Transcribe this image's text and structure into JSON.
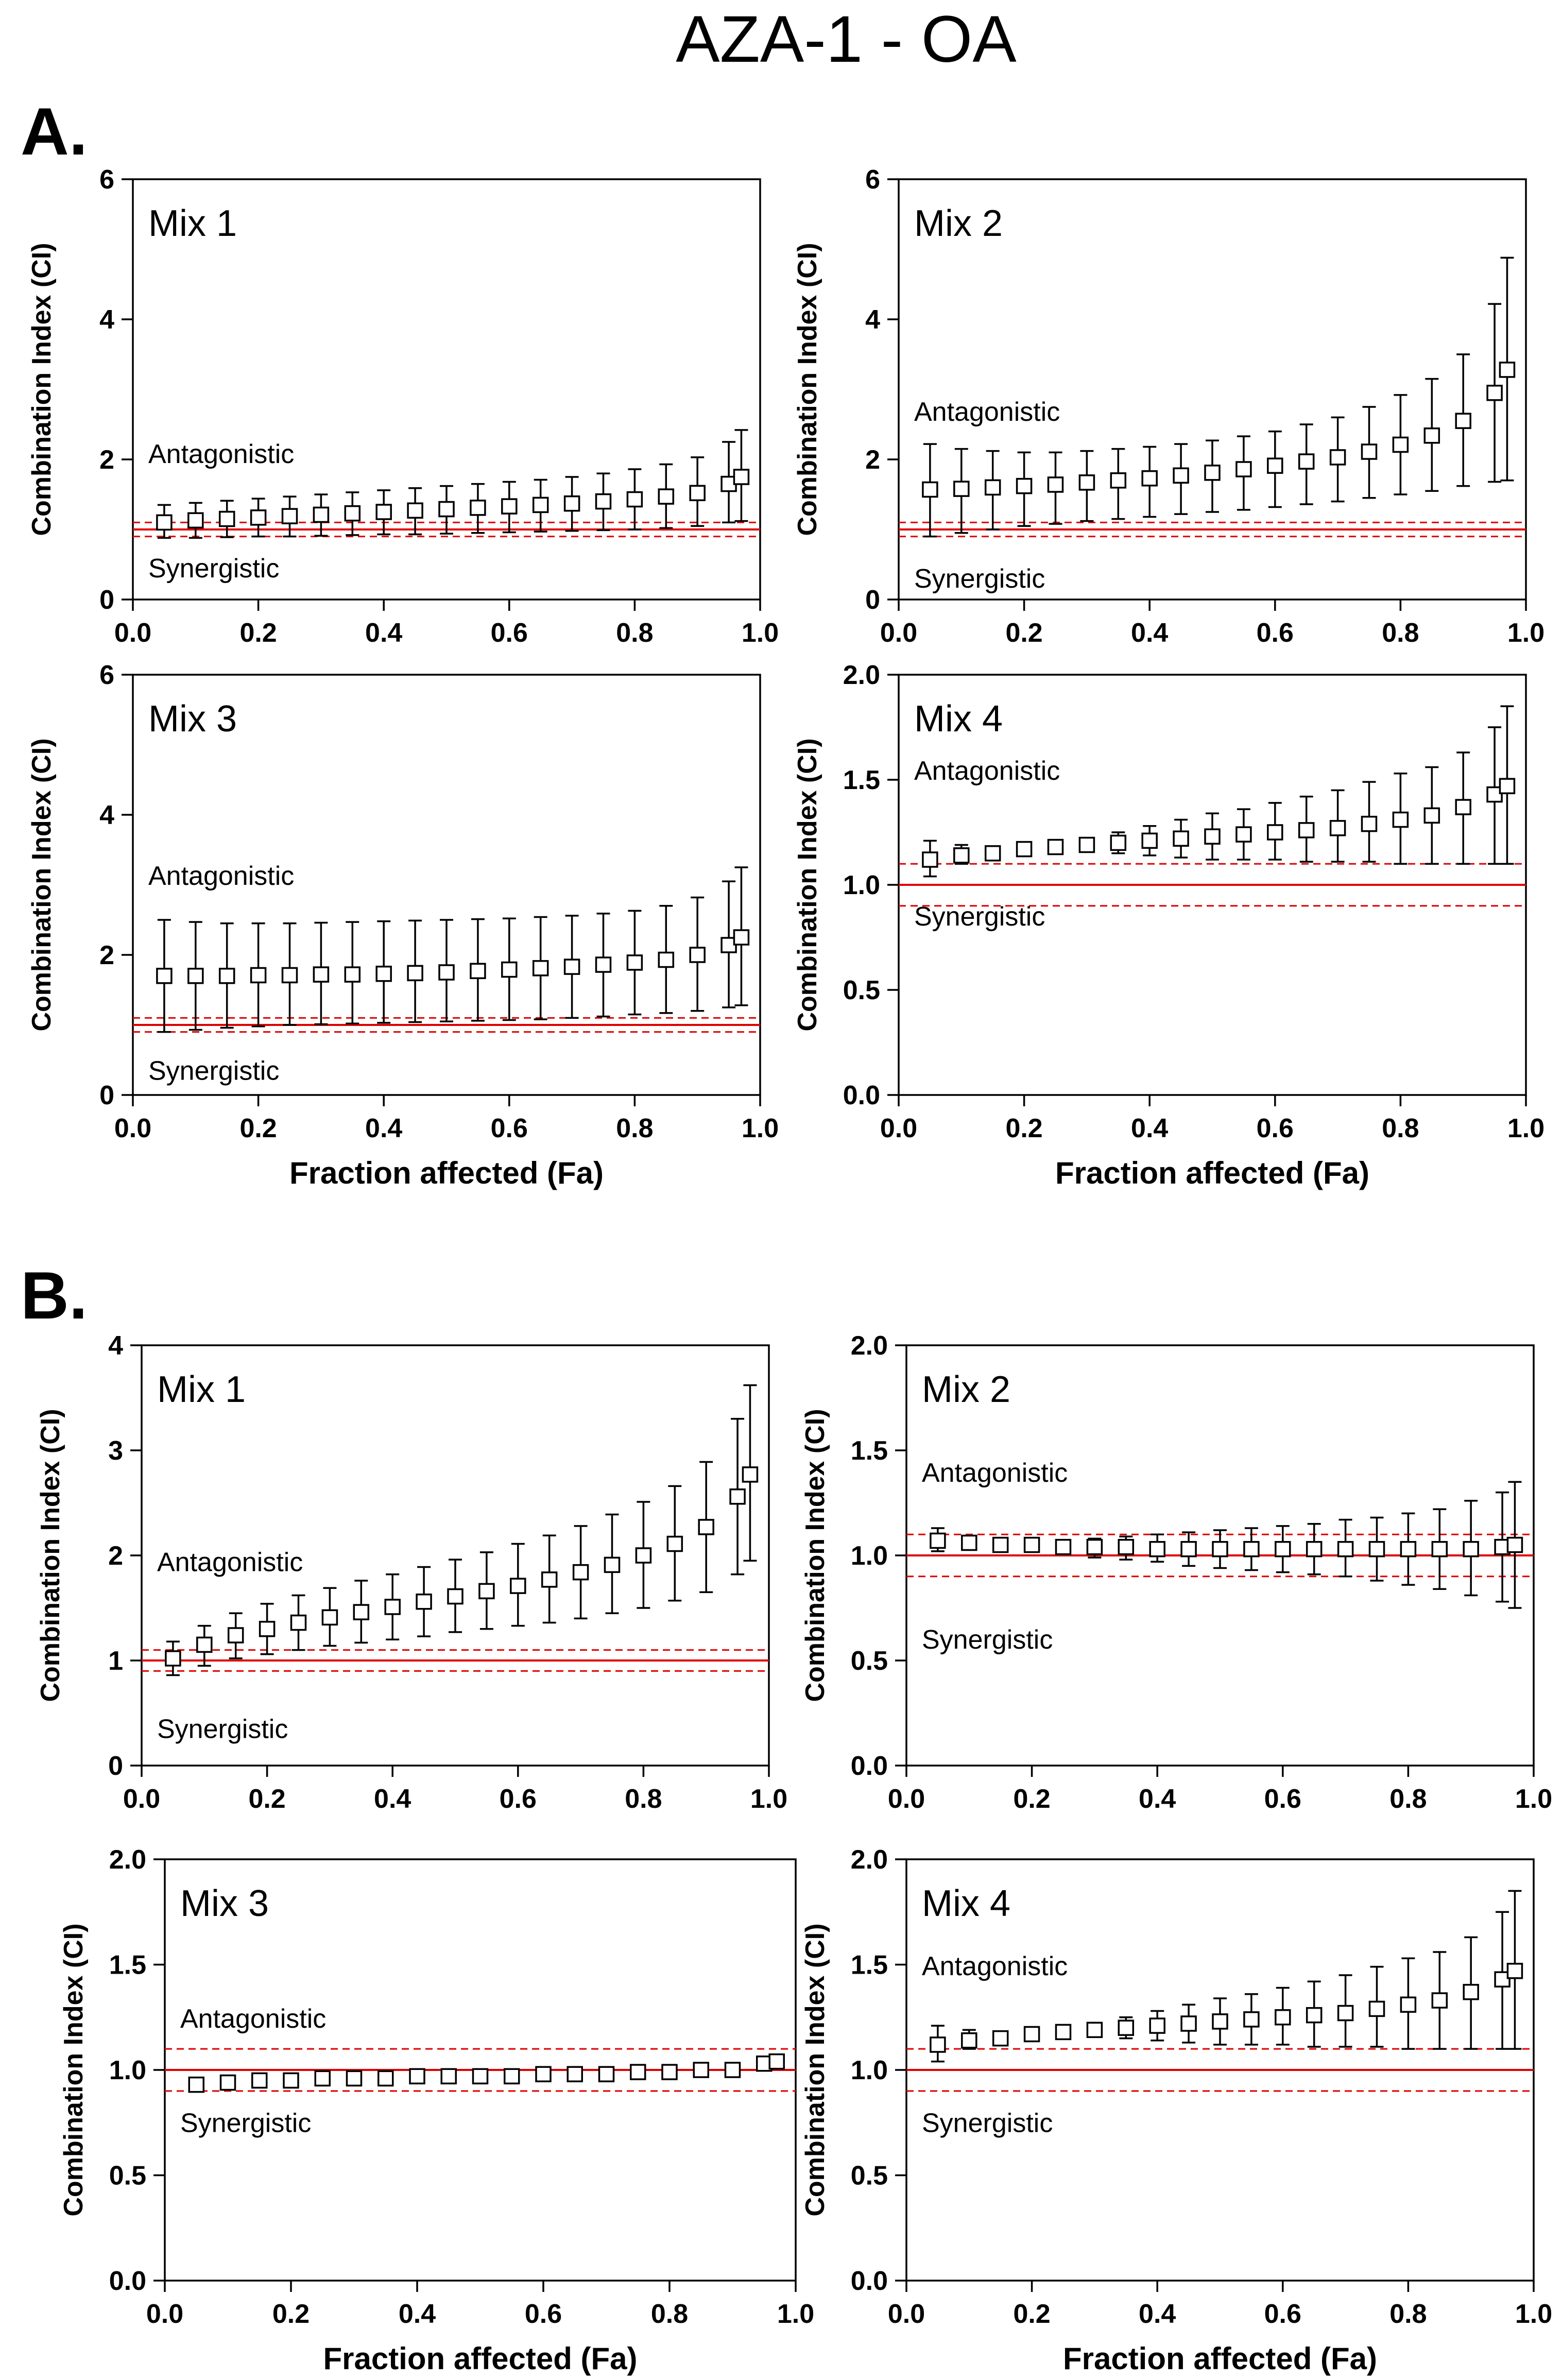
{
  "figure_title": "AZA-1 - OA",
  "colors": {
    "reference_line": "#e00000",
    "marker_edge": "#000000",
    "marker_fill": "#ffffff"
  },
  "x_axis_label": "Fraction affected (Fa)",
  "y_axis_label": "Combination Index (CI)",
  "section_labels": {
    "A": "A.",
    "B": "B."
  },
  "zone_labels": {
    "antagonistic": "Antagonistic",
    "synergistic": "Synergistic"
  },
  "chart_data": [
    {
      "id": "A-mix1",
      "section": "A",
      "type": "scatter",
      "title": "Mix 1",
      "xlim": [
        0,
        1
      ],
      "ylim": [
        0,
        6
      ],
      "xticks": [
        0.0,
        0.2,
        0.4,
        0.6,
        0.8,
        1.0
      ],
      "yticks": [
        0,
        2,
        4,
        6
      ],
      "xtick_labels": [
        "0.0",
        "0.2",
        "0.4",
        "0.6",
        "0.8",
        "1.0"
      ],
      "ytick_labels": [
        "0",
        "2",
        "4",
        "6"
      ],
      "reference_lines": {
        "additive": 1.0,
        "upper": 1.1,
        "lower": 0.9
      },
      "x": [
        0.05,
        0.1,
        0.15,
        0.2,
        0.25,
        0.3,
        0.35,
        0.4,
        0.45,
        0.5,
        0.55,
        0.6,
        0.65,
        0.7,
        0.75,
        0.8,
        0.85,
        0.9,
        0.95,
        0.97
      ],
      "y": [
        1.1,
        1.13,
        1.15,
        1.17,
        1.19,
        1.21,
        1.23,
        1.25,
        1.27,
        1.29,
        1.31,
        1.33,
        1.35,
        1.37,
        1.4,
        1.43,
        1.47,
        1.52,
        1.65,
        1.75
      ],
      "err_low": [
        0.88,
        0.88,
        0.89,
        0.9,
        0.9,
        0.91,
        0.92,
        0.93,
        0.93,
        0.94,
        0.95,
        0.96,
        0.97,
        0.98,
        0.99,
        1.0,
        1.02,
        1.05,
        1.1,
        1.12
      ],
      "err_high": [
        1.35,
        1.38,
        1.41,
        1.44,
        1.47,
        1.5,
        1.53,
        1.56,
        1.59,
        1.62,
        1.65,
        1.68,
        1.71,
        1.75,
        1.8,
        1.86,
        1.93,
        2.03,
        2.25,
        2.42
      ]
    },
    {
      "id": "A-mix2",
      "section": "A",
      "type": "scatter",
      "title": "Mix 2",
      "xlim": [
        0,
        1
      ],
      "ylim": [
        0,
        6
      ],
      "xticks": [
        0.0,
        0.2,
        0.4,
        0.6,
        0.8,
        1.0
      ],
      "yticks": [
        0,
        2,
        4,
        6
      ],
      "xtick_labels": [
        "0.0",
        "0.2",
        "0.4",
        "0.6",
        "0.8",
        "1.0"
      ],
      "ytick_labels": [
        "0",
        "2",
        "4",
        "6"
      ],
      "reference_lines": {
        "additive": 1.0,
        "upper": 1.1,
        "lower": 0.9
      },
      "x": [
        0.05,
        0.1,
        0.15,
        0.2,
        0.25,
        0.3,
        0.35,
        0.4,
        0.45,
        0.5,
        0.55,
        0.6,
        0.65,
        0.7,
        0.75,
        0.8,
        0.85,
        0.9,
        0.95,
        0.97
      ],
      "y": [
        1.57,
        1.58,
        1.6,
        1.62,
        1.64,
        1.67,
        1.7,
        1.73,
        1.77,
        1.81,
        1.86,
        1.91,
        1.97,
        2.03,
        2.11,
        2.21,
        2.34,
        2.55,
        2.95,
        3.28
      ],
      "err_low": [
        0.9,
        0.95,
        1.0,
        1.05,
        1.08,
        1.12,
        1.15,
        1.18,
        1.22,
        1.25,
        1.28,
        1.32,
        1.36,
        1.4,
        1.45,
        1.5,
        1.55,
        1.62,
        1.68,
        1.7
      ],
      "err_high": [
        2.22,
        2.15,
        2.12,
        2.1,
        2.1,
        2.12,
        2.15,
        2.18,
        2.22,
        2.27,
        2.33,
        2.4,
        2.5,
        2.6,
        2.75,
        2.92,
        3.15,
        3.5,
        4.22,
        4.88
      ]
    },
    {
      "id": "A-mix3",
      "section": "A",
      "type": "scatter",
      "title": "Mix 3",
      "xlim": [
        0,
        1
      ],
      "ylim": [
        0,
        6
      ],
      "xticks": [
        0.0,
        0.2,
        0.4,
        0.6,
        0.8,
        1.0
      ],
      "yticks": [
        0,
        2,
        4,
        6
      ],
      "xtick_labels": [
        "0.0",
        "0.2",
        "0.4",
        "0.6",
        "0.8",
        "1.0"
      ],
      "ytick_labels": [
        "0",
        "2",
        "4",
        "6"
      ],
      "reference_lines": {
        "additive": 1.0,
        "upper": 1.1,
        "lower": 0.9
      },
      "x": [
        0.05,
        0.1,
        0.15,
        0.2,
        0.25,
        0.3,
        0.35,
        0.4,
        0.45,
        0.5,
        0.55,
        0.6,
        0.65,
        0.7,
        0.75,
        0.8,
        0.85,
        0.9,
        0.95,
        0.97
      ],
      "y": [
        1.7,
        1.7,
        1.7,
        1.71,
        1.71,
        1.72,
        1.72,
        1.73,
        1.74,
        1.75,
        1.77,
        1.79,
        1.81,
        1.83,
        1.86,
        1.89,
        1.93,
        2.0,
        2.14,
        2.25
      ],
      "err_low": [
        0.9,
        0.93,
        0.96,
        0.98,
        1.0,
        1.01,
        1.02,
        1.03,
        1.04,
        1.05,
        1.06,
        1.07,
        1.08,
        1.1,
        1.12,
        1.15,
        1.17,
        1.2,
        1.25,
        1.28
      ],
      "err_high": [
        2.5,
        2.47,
        2.45,
        2.45,
        2.45,
        2.46,
        2.47,
        2.48,
        2.49,
        2.5,
        2.51,
        2.52,
        2.54,
        2.56,
        2.59,
        2.63,
        2.7,
        2.82,
        3.05,
        3.25
      ]
    },
    {
      "id": "A-mix4",
      "section": "A",
      "type": "scatter",
      "title": "Mix 4",
      "xlim": [
        0,
        1
      ],
      "ylim": [
        0,
        2
      ],
      "xticks": [
        0.0,
        0.2,
        0.4,
        0.6,
        0.8,
        1.0
      ],
      "yticks": [
        0.0,
        0.5,
        1.0,
        1.5,
        2.0
      ],
      "xtick_labels": [
        "0.0",
        "0.2",
        "0.4",
        "0.6",
        "0.8",
        "1.0"
      ],
      "ytick_labels": [
        "0.0",
        "0.5",
        "1.0",
        "1.5",
        "2.0"
      ],
      "reference_lines": {
        "additive": 1.0,
        "upper": 1.1,
        "lower": 0.9
      },
      "x": [
        0.05,
        0.1,
        0.15,
        0.2,
        0.25,
        0.3,
        0.35,
        0.4,
        0.45,
        0.5,
        0.55,
        0.6,
        0.65,
        0.7,
        0.75,
        0.8,
        0.85,
        0.9,
        0.95,
        0.97
      ],
      "y": [
        1.12,
        1.14,
        1.15,
        1.17,
        1.18,
        1.19,
        1.2,
        1.21,
        1.22,
        1.23,
        1.24,
        1.25,
        1.26,
        1.27,
        1.29,
        1.31,
        1.33,
        1.37,
        1.43,
        1.47
      ],
      "err_low": [
        1.04,
        1.1,
        1.13,
        1.14,
        1.15,
        1.16,
        1.15,
        1.14,
        1.13,
        1.12,
        1.12,
        1.12,
        1.11,
        1.11,
        1.11,
        1.1,
        1.1,
        1.1,
        1.1,
        1.1
      ],
      "err_high": [
        1.21,
        1.19,
        1.17,
        1.19,
        1.21,
        1.22,
        1.25,
        1.28,
        1.31,
        1.34,
        1.36,
        1.39,
        1.42,
        1.45,
        1.49,
        1.53,
        1.56,
        1.63,
        1.75,
        1.85
      ]
    },
    {
      "id": "B-mix1",
      "section": "B",
      "type": "scatter",
      "title": "Mix 1",
      "xlim": [
        0,
        1
      ],
      "ylim": [
        0,
        4
      ],
      "xticks": [
        0.0,
        0.2,
        0.4,
        0.6,
        0.8,
        1.0
      ],
      "yticks": [
        0,
        1,
        2,
        3,
        4
      ],
      "xtick_labels": [
        "0.0",
        "0.2",
        "0.4",
        "0.6",
        "0.8",
        "1.0"
      ],
      "ytick_labels": [
        "0",
        "1",
        "2",
        "3",
        "4"
      ],
      "reference_lines": {
        "additive": 1.0,
        "upper": 1.1,
        "lower": 0.9
      },
      "x": [
        0.05,
        0.1,
        0.15,
        0.2,
        0.25,
        0.3,
        0.35,
        0.4,
        0.45,
        0.5,
        0.55,
        0.6,
        0.65,
        0.7,
        0.75,
        0.8,
        0.85,
        0.9,
        0.95,
        0.97
      ],
      "y": [
        1.02,
        1.15,
        1.24,
        1.3,
        1.36,
        1.41,
        1.46,
        1.51,
        1.56,
        1.61,
        1.66,
        1.71,
        1.77,
        1.84,
        1.91,
        2.0,
        2.11,
        2.27,
        2.56,
        2.77
      ],
      "err_low": [
        0.86,
        0.95,
        1.02,
        1.06,
        1.1,
        1.14,
        1.17,
        1.2,
        1.23,
        1.27,
        1.3,
        1.33,
        1.36,
        1.4,
        1.45,
        1.5,
        1.57,
        1.65,
        1.82,
        1.95
      ],
      "err_high": [
        1.18,
        1.33,
        1.45,
        1.54,
        1.62,
        1.69,
        1.76,
        1.82,
        1.89,
        1.96,
        2.03,
        2.11,
        2.19,
        2.28,
        2.39,
        2.51,
        2.66,
        2.89,
        3.3,
        3.62
      ]
    },
    {
      "id": "B-mix2",
      "section": "B",
      "type": "scatter",
      "title": "Mix 2",
      "xlim": [
        0,
        1
      ],
      "ylim": [
        0,
        2
      ],
      "xticks": [
        0.0,
        0.2,
        0.4,
        0.6,
        0.8,
        1.0
      ],
      "yticks": [
        0.0,
        0.5,
        1.0,
        1.5,
        2.0
      ],
      "xtick_labels": [
        "0.0",
        "0.2",
        "0.4",
        "0.6",
        "0.8",
        "1.0"
      ],
      "ytick_labels": [
        "0.0",
        "0.5",
        "1.0",
        "1.5",
        "2.0"
      ],
      "reference_lines": {
        "additive": 1.0,
        "upper": 1.1,
        "lower": 0.9
      },
      "x": [
        0.05,
        0.1,
        0.15,
        0.2,
        0.25,
        0.3,
        0.35,
        0.4,
        0.45,
        0.5,
        0.55,
        0.6,
        0.65,
        0.7,
        0.75,
        0.8,
        0.85,
        0.9,
        0.95,
        0.97
      ],
      "y": [
        1.07,
        1.06,
        1.05,
        1.05,
        1.04,
        1.04,
        1.04,
        1.03,
        1.03,
        1.03,
        1.03,
        1.03,
        1.03,
        1.03,
        1.03,
        1.03,
        1.03,
        1.03,
        1.04,
        1.05
      ],
      "err_low": [
        1.02,
        1.03,
        1.03,
        1.02,
        1.01,
        0.99,
        0.98,
        0.97,
        0.95,
        0.94,
        0.93,
        0.92,
        0.91,
        0.9,
        0.88,
        0.86,
        0.84,
        0.81,
        0.78,
        0.75
      ],
      "err_high": [
        1.13,
        1.09,
        1.07,
        1.07,
        1.07,
        1.08,
        1.09,
        1.1,
        1.11,
        1.12,
        1.13,
        1.14,
        1.15,
        1.17,
        1.18,
        1.2,
        1.22,
        1.26,
        1.3,
        1.35
      ]
    },
    {
      "id": "B-mix3",
      "section": "B",
      "type": "scatter",
      "title": "Mix 3",
      "xlim": [
        0,
        1
      ],
      "ylim": [
        0,
        2
      ],
      "xticks": [
        0.0,
        0.2,
        0.4,
        0.6,
        0.8,
        1.0
      ],
      "yticks": [
        0.0,
        0.5,
        1.0,
        1.5,
        2.0
      ],
      "xtick_labels": [
        "0.0",
        "0.2",
        "0.4",
        "0.6",
        "0.8",
        "1.0"
      ],
      "ytick_labels": [
        "0.0",
        "0.5",
        "1.0",
        "1.5",
        "2.0"
      ],
      "reference_lines": {
        "additive": 1.0,
        "upper": 1.1,
        "lower": 0.9
      },
      "x": [
        0.05,
        0.1,
        0.15,
        0.2,
        0.25,
        0.3,
        0.35,
        0.4,
        0.45,
        0.5,
        0.55,
        0.6,
        0.65,
        0.7,
        0.75,
        0.8,
        0.85,
        0.9,
        0.95,
        0.97
      ],
      "y": [
        0.93,
        0.94,
        0.95,
        0.95,
        0.96,
        0.96,
        0.96,
        0.97,
        0.97,
        0.97,
        0.97,
        0.98,
        0.98,
        0.98,
        0.99,
        0.99,
        1.0,
        1.0,
        1.03,
        1.04
      ],
      "err_low": [
        0.93,
        0.94,
        0.95,
        0.95,
        0.96,
        0.96,
        0.96,
        0.97,
        0.97,
        0.97,
        0.97,
        0.98,
        0.98,
        0.98,
        0.99,
        0.99,
        1.0,
        1.0,
        1.03,
        1.04
      ],
      "err_high": [
        0.93,
        0.94,
        0.95,
        0.95,
        0.96,
        0.96,
        0.96,
        0.97,
        0.97,
        0.97,
        0.97,
        0.98,
        0.98,
        0.98,
        0.99,
        0.99,
        1.0,
        1.0,
        1.03,
        1.04
      ]
    },
    {
      "id": "B-mix4",
      "section": "B",
      "type": "scatter",
      "title": "Mix 4",
      "xlim": [
        0,
        1
      ],
      "ylim": [
        0,
        2
      ],
      "xticks": [
        0.0,
        0.2,
        0.4,
        0.6,
        0.8,
        1.0
      ],
      "yticks": [
        0.0,
        0.5,
        1.0,
        1.5,
        2.0
      ],
      "xtick_labels": [
        "0.0",
        "0.2",
        "0.4",
        "0.6",
        "0.8",
        "1.0"
      ],
      "ytick_labels": [
        "0.0",
        "0.5",
        "1.0",
        "1.5",
        "2.0"
      ],
      "reference_lines": {
        "additive": 1.0,
        "upper": 1.1,
        "lower": 0.9
      },
      "x": [
        0.05,
        0.1,
        0.15,
        0.2,
        0.25,
        0.3,
        0.35,
        0.4,
        0.45,
        0.5,
        0.55,
        0.6,
        0.65,
        0.7,
        0.75,
        0.8,
        0.85,
        0.9,
        0.95,
        0.97
      ],
      "y": [
        1.12,
        1.14,
        1.15,
        1.17,
        1.18,
        1.19,
        1.2,
        1.21,
        1.22,
        1.23,
        1.24,
        1.25,
        1.26,
        1.27,
        1.29,
        1.31,
        1.33,
        1.37,
        1.43,
        1.47
      ],
      "err_low": [
        1.04,
        1.1,
        1.13,
        1.14,
        1.15,
        1.16,
        1.15,
        1.14,
        1.13,
        1.12,
        1.12,
        1.12,
        1.11,
        1.11,
        1.11,
        1.1,
        1.1,
        1.1,
        1.1,
        1.1
      ],
      "err_high": [
        1.21,
        1.19,
        1.17,
        1.19,
        1.21,
        1.22,
        1.25,
        1.28,
        1.31,
        1.34,
        1.36,
        1.39,
        1.42,
        1.45,
        1.49,
        1.53,
        1.56,
        1.63,
        1.75,
        1.85
      ]
    }
  ]
}
